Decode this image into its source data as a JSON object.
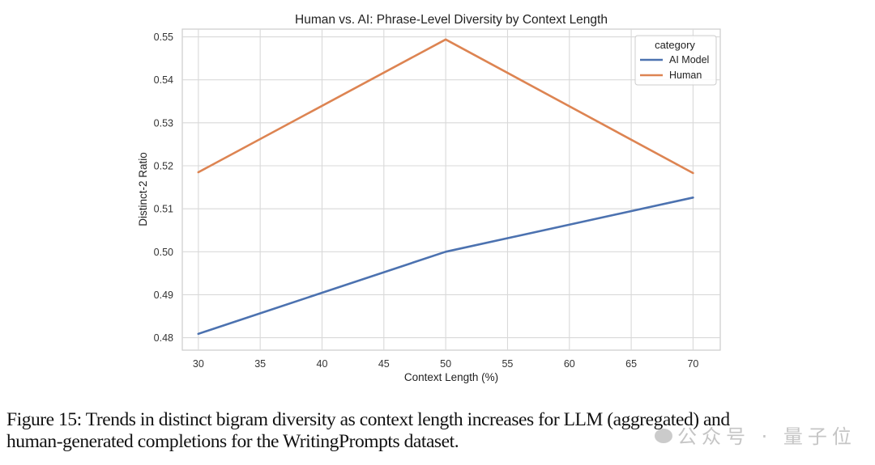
{
  "chart_data": {
    "type": "line",
    "title": "Human vs. AI: Phrase-Level Diversity by Context Length",
    "xlabel": "Context Length (%)",
    "ylabel": "Distinct-2 Ratio",
    "x": [
      30,
      50,
      70
    ],
    "xlim": [
      28.7,
      72.2
    ],
    "ylim": [
      0.4771,
      0.5518
    ],
    "xticks": [
      30,
      35,
      40,
      45,
      50,
      55,
      60,
      65,
      70
    ],
    "xtick_labels": [
      "30",
      "35",
      "40",
      "45",
      "50",
      "55",
      "60",
      "65",
      "70"
    ],
    "yticks": [
      0.48,
      0.49,
      0.5,
      0.51,
      0.52,
      0.53,
      0.54,
      0.55
    ],
    "ytick_labels": [
      "0.48",
      "0.49",
      "0.50",
      "0.51",
      "0.52",
      "0.53",
      "0.54",
      "0.55"
    ],
    "grid": true,
    "legend": {
      "title": "category",
      "placement": "top-right"
    },
    "series": [
      {
        "name": "AI Model",
        "color": "#4c72b0",
        "values": [
          0.4809,
          0.5,
          0.5126
        ]
      },
      {
        "name": "Human",
        "color": "#dd8452",
        "values": [
          0.5185,
          0.5494,
          0.5183
        ]
      }
    ]
  },
  "caption": {
    "line1": "Figure 15: Trends in distinct bigram diversity as context length increases for LLM (aggregated) and",
    "line2": "human-generated completions for the WritingPrompts dataset."
  },
  "watermark": "公众号 · 量子位"
}
